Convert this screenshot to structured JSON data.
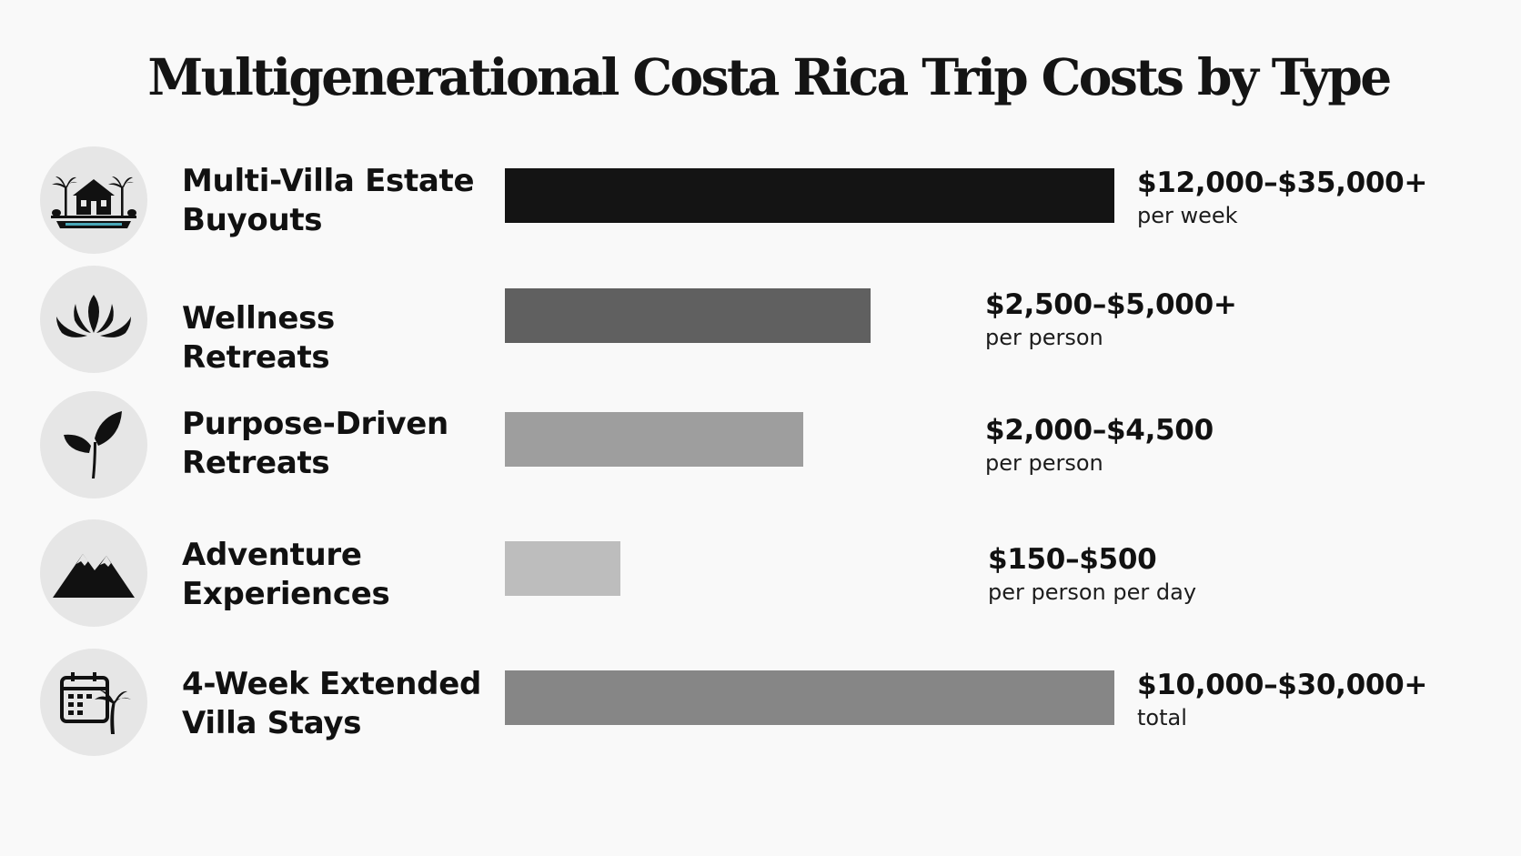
{
  "chart_data": {
    "type": "bar",
    "orientation": "horizontal",
    "title": "Multigenerational Costa Rica Trip Costs by Type",
    "categories": [
      "Multi-Villa Estate Buyouts",
      "Wellness Retreats",
      "Purpose-Driven Retreats",
      "Adventure Experiences",
      "4-Week Extended Villa Stays"
    ],
    "rows": [
      {
        "label_lines": [
          "Multi-Villa Estate",
          "Buyouts"
        ],
        "value_text": "$12,000–$35,000+",
        "unit_text": "per week",
        "bar_fraction": 1.0,
        "bar_color": "#141414",
        "icon": "villa-palm-icon"
      },
      {
        "label_lines": [
          "Wellness Retreats"
        ],
        "value_text": "$2,500–$5,000+",
        "unit_text": "per person",
        "bar_fraction": 0.6,
        "bar_color": "#606060",
        "icon": "lotus-icon"
      },
      {
        "label_lines": [
          "Purpose-Driven",
          "Retreats"
        ],
        "value_text": "$2,000–$4,500",
        "unit_text": "per person",
        "bar_fraction": 0.49,
        "bar_color": "#9e9e9e",
        "icon": "leaf-sprout-icon"
      },
      {
        "label_lines": [
          "Adventure",
          "Experiences"
        ],
        "value_text": "$150–$500",
        "unit_text": "per person per day",
        "bar_fraction": 0.19,
        "bar_color": "#bdbdbd",
        "icon": "mountain-icon"
      },
      {
        "label_lines": [
          "4-Week Extended",
          "Villa Stays"
        ],
        "value_text": "$10,000–$30,000+",
        "unit_text": "total",
        "bar_fraction": 1.0,
        "bar_color": "#868686",
        "icon": "calendar-palm-icon"
      }
    ],
    "xlabel": "",
    "ylabel": "",
    "grid": false,
    "legend": "none"
  }
}
